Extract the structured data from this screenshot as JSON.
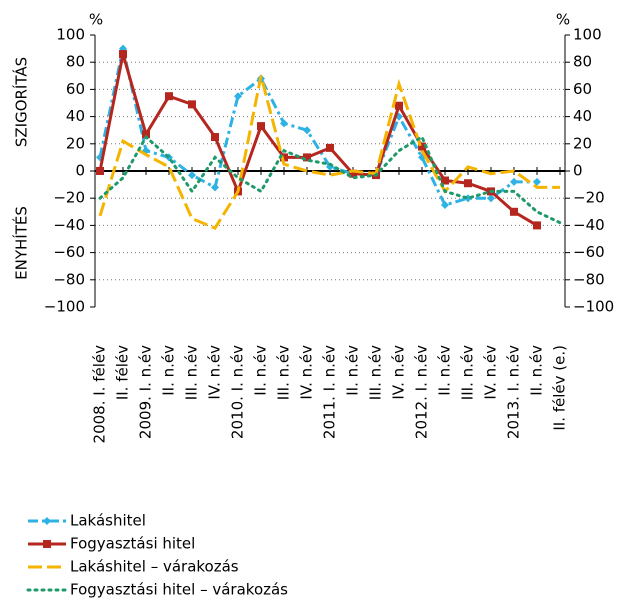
{
  "chart_data": {
    "type": "line",
    "left_label_top": "SZIGORÍTÁS",
    "left_label_bottom": "ENYHÍTÉS",
    "y_unit": "%",
    "y2_unit": "%",
    "categories": [
      "2008. I. félév",
      "II. félév",
      "2009. I. n.év",
      "II. n.év",
      "III. n.év",
      "IV. n.év",
      "2010. I. n.év",
      "II. n.év",
      "III. n.év",
      "IV. n.év",
      "2011. I. n.év",
      "II. n.év",
      "III. n.év",
      "IV. n.év",
      "2012. I. n.év",
      "II. n.év",
      "III. n.év",
      "IV. n.év",
      "2013. I. n.év",
      "II. n.év",
      "II. félév (e.)"
    ],
    "ylim": [
      -100,
      100
    ],
    "y2lim": [
      -100,
      100
    ],
    "yticks": [
      100,
      80,
      60,
      40,
      20,
      0,
      {
        "value": -20,
        "label": "−20"
      },
      {
        "value": -40,
        "label": "−40"
      },
      {
        "value": -60,
        "label": "−60"
      },
      {
        "value": -80,
        "label": "−80"
      },
      {
        "value": -100,
        "label": "−100"
      }
    ],
    "y2ticks": [
      100,
      80,
      60,
      40,
      20,
      0,
      {
        "value": -20,
        "label": "−20"
      },
      {
        "value": -40,
        "label": "−40"
      },
      {
        "value": -60,
        "label": "−60"
      },
      {
        "value": -80,
        "label": "−80"
      },
      {
        "value": -100,
        "label": "−100"
      }
    ],
    "grid": true,
    "series": [
      {
        "name": "Lakáshitel",
        "color": "#2eb1e3",
        "style": "dashdot-diamond",
        "values": [
          10,
          90,
          15,
          10,
          -3,
          -12,
          55,
          68,
          35,
          30,
          3,
          -2,
          -3,
          40,
          10,
          -25,
          -20,
          -20,
          -8,
          -8,
          null
        ]
      },
      {
        "name": "Fogyasztási hitel",
        "color": "#b5261e",
        "style": "solid-square",
        "values": [
          0,
          86,
          27,
          55,
          49,
          25,
          -15,
          33,
          10,
          10,
          17,
          -2,
          -3,
          48,
          18,
          -7,
          -9,
          -15,
          -30,
          -40,
          null
        ]
      },
      {
        "name": "Lakáshitel – várakozás",
        "color": "#f5b400",
        "style": "longdash",
        "values": [
          -33,
          22,
          12,
          3,
          -35,
          -42,
          -15,
          70,
          5,
          0,
          -3,
          0,
          -2,
          64,
          15,
          -15,
          3,
          -2,
          0,
          -12,
          -12
        ]
      },
      {
        "name": "Fogyasztási hitel – várakozás",
        "color": "#1e9a6a",
        "style": "dotted",
        "values": [
          -20,
          -5,
          25,
          10,
          -15,
          10,
          -5,
          -15,
          15,
          8,
          5,
          -5,
          -3,
          15,
          25,
          -15,
          -20,
          -15,
          -15,
          -30,
          -38
        ]
      }
    ]
  }
}
